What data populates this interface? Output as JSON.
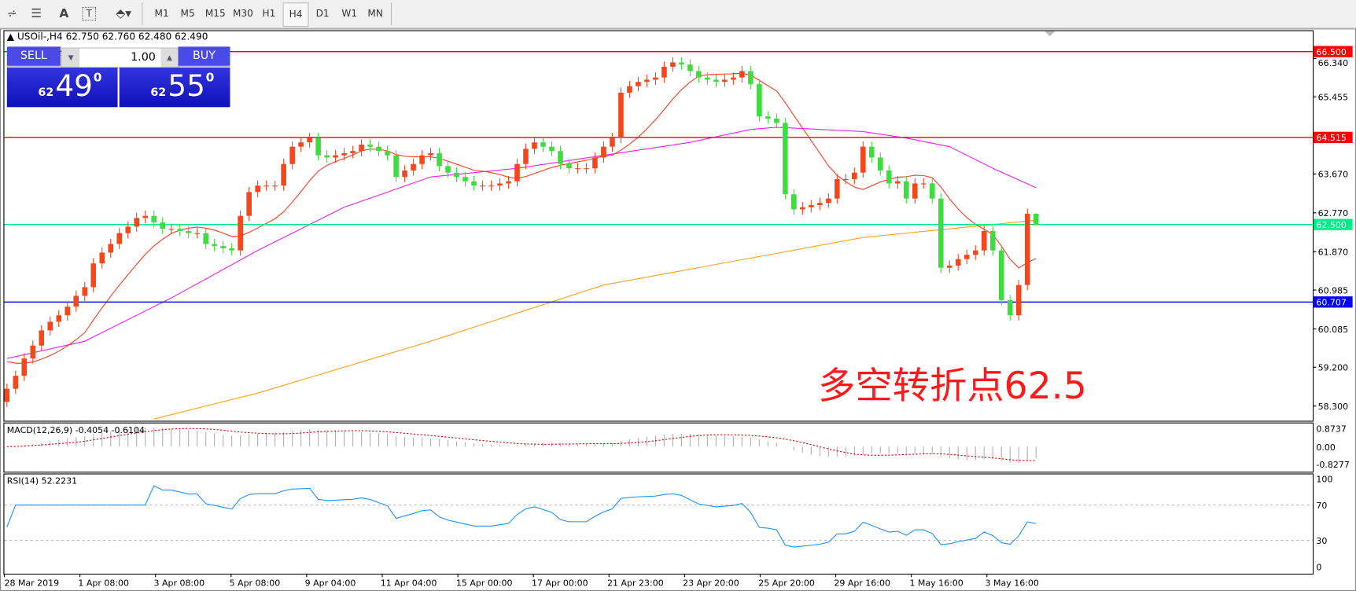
{
  "toolbar": {
    "icons": [
      "fibonacci-fan-icon",
      "fibonacci-retracement-icon",
      "text-icon",
      "text-label-icon",
      "arrows-icon"
    ],
    "text_icon_glyph": "A",
    "label_icon_glyph": "T",
    "timeframes": [
      "M1",
      "M5",
      "M15",
      "M30",
      "H1",
      "H4",
      "D1",
      "W1",
      "MN"
    ],
    "active_timeframe": "H4"
  },
  "chart_header": {
    "symbol": "USOil-,H4",
    "ohlc": "62.750 62.760 62.480 62.490"
  },
  "trade_panel": {
    "sell_label": "SELL",
    "buy_label": "BUY",
    "lot": "1.00",
    "bid_prefix": "62",
    "bid_main": "49",
    "bid_sup": "0",
    "ask_prefix": "62",
    "ask_main": "55",
    "ask_sup": "0"
  },
  "annotation": "多空转折点62.5",
  "colors": {
    "bull": "#f5461c",
    "bear": "#3fdc3f",
    "ma_fast": "#ff3b1f",
    "ma_mid": "#ee22ee",
    "ma_slow": "#ffa020",
    "rsi": "#1e90ff",
    "macd_signal": "#e00000"
  },
  "chart_data": {
    "type": "candlestick",
    "symbol": "USOil",
    "timeframe": "H4",
    "ylim": [
      58.0,
      66.6
    ],
    "price_ticks": [
      "66.340",
      "65.455",
      "63.670",
      "62.770",
      "61.870",
      "60.985",
      "60.085",
      "59.200",
      "58.300"
    ],
    "levels": [
      {
        "value": "66.500",
        "color": "#ff0000"
      },
      {
        "value": "64.515",
        "color": "#ff0000"
      },
      {
        "value": "62.500",
        "color": "#00ee88"
      },
      {
        "value": "60.707",
        "color": "#0000ff"
      }
    ],
    "x_labels": [
      "28 Mar 2019",
      "1 Apr 08:00",
      "3 Apr 08:00",
      "5 Apr 08:00",
      "9 Apr 04:00",
      "11 Apr 04:00",
      "15 Apr 00:00",
      "17 Apr 00:00",
      "21 Apr 23:00",
      "23 Apr 20:00",
      "25 Apr 20:00",
      "29 Apr 16:00",
      "1 May 16:00",
      "3 May 16:00"
    ],
    "close": [
      58.7,
      59.0,
      59.4,
      59.7,
      60.05,
      60.25,
      60.4,
      60.6,
      60.85,
      61.05,
      61.6,
      61.85,
      62.05,
      62.3,
      62.45,
      62.65,
      62.7,
      62.55,
      62.4,
      62.4,
      62.35,
      62.3,
      62.3,
      62.05,
      62.0,
      61.95,
      61.9,
      62.7,
      63.25,
      63.4,
      63.4,
      63.4,
      63.9,
      64.3,
      64.4,
      64.5,
      64.1,
      64.05,
      64.1,
      64.15,
      64.2,
      64.35,
      64.3,
      64.2,
      64.1,
      63.6,
      63.75,
      63.9,
      64.1,
      64.15,
      63.85,
      63.7,
      63.6,
      63.5,
      63.4,
      63.4,
      63.4,
      63.45,
      63.5,
      63.9,
      64.25,
      64.4,
      64.3,
      64.2,
      63.9,
      63.8,
      63.8,
      63.8,
      64.05,
      64.3,
      64.5,
      65.55,
      65.7,
      65.8,
      65.85,
      65.9,
      66.15,
      66.25,
      66.2,
      66.05,
      65.9,
      65.85,
      65.8,
      65.85,
      65.9,
      66.05,
      65.75,
      65.0,
      64.95,
      64.85,
      63.2,
      62.85,
      62.9,
      62.95,
      63.0,
      63.1,
      63.55,
      63.55,
      63.7,
      64.3,
      64.05,
      63.75,
      63.45,
      63.5,
      63.1,
      63.45,
      63.45,
      63.1,
      61.5,
      61.55,
      61.7,
      61.8,
      61.9,
      62.35,
      61.9,
      60.75,
      60.4,
      61.1,
      62.75,
      62.49
    ],
    "last_bar": {
      "open": 62.75,
      "high": 62.76,
      "low": 62.48,
      "close": 62.49
    },
    "ma_mid": [
      [
        0,
        59.4
      ],
      [
        9,
        59.8
      ],
      [
        19,
        60.8
      ],
      [
        29,
        61.9
      ],
      [
        39,
        62.9
      ],
      [
        49,
        63.6
      ],
      [
        59,
        63.8
      ],
      [
        69,
        64.1
      ],
      [
        79,
        64.4
      ],
      [
        86,
        64.7
      ],
      [
        89,
        64.75
      ],
      [
        99,
        64.65
      ],
      [
        104,
        64.5
      ],
      [
        109,
        64.3
      ],
      [
        114,
        63.8
      ],
      [
        119,
        63.35
      ]
    ],
    "ma_slow": [
      [
        17,
        58.0
      ],
      [
        29,
        58.6
      ],
      [
        49,
        59.8
      ],
      [
        69,
        61.1
      ],
      [
        99,
        62.2
      ],
      [
        119,
        62.6
      ]
    ],
    "macd": {
      "label": "MACD(12,26,9) -0.4054 -0.6104",
      "ticks": [
        "0.8737",
        "0.00",
        "-0.8277"
      ]
    },
    "rsi": {
      "label": "RSI(14) 52.2231",
      "ticks": [
        "100",
        "70",
        "30",
        "0"
      ],
      "levels": [
        70,
        30
      ]
    }
  }
}
